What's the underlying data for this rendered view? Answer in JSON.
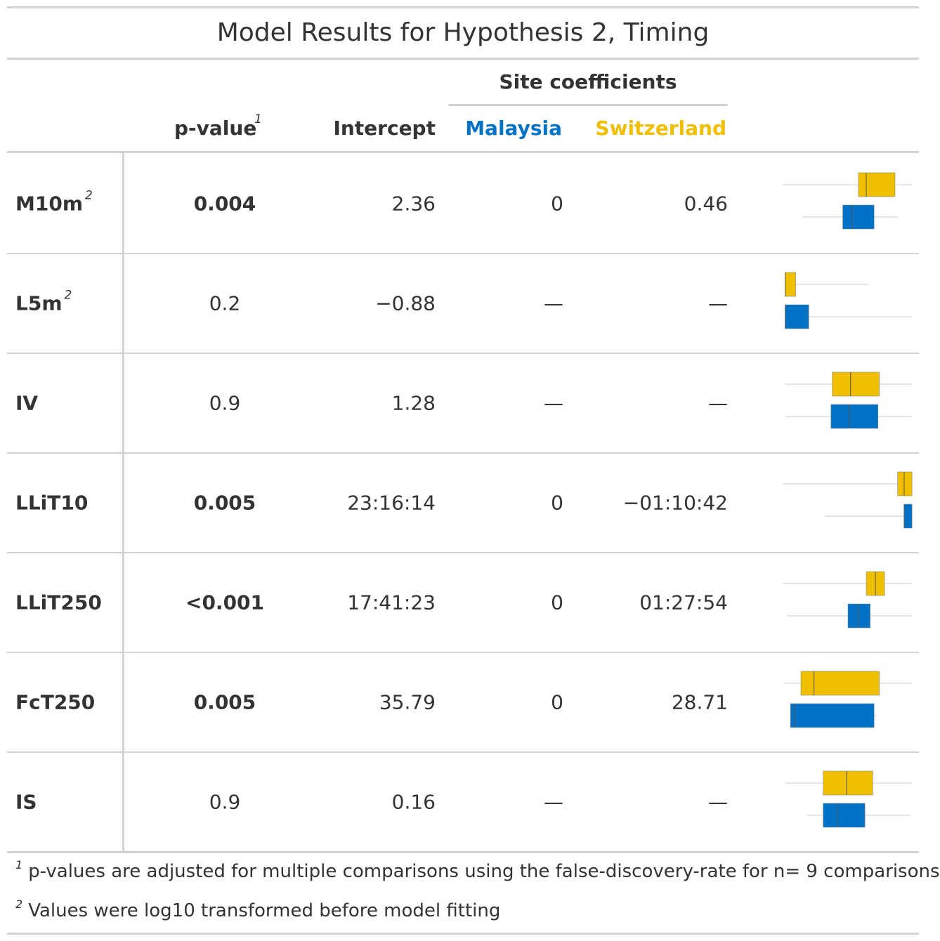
{
  "title": "Model Results for Hypothesis 2, Timing",
  "spanner": "Site coefficients",
  "columns": {
    "pvalue": "p-value",
    "pvalue_sup": "1",
    "intercept": "Intercept",
    "malaysia": "Malaysia",
    "switzerland": "Switzerland"
  },
  "colors": {
    "malaysia": "#0072c6",
    "switzerland": "#f0c000",
    "text": "#333333",
    "rule": "#d3d3d3"
  },
  "rows": [
    {
      "label": "M10m",
      "sup": "2",
      "pvalue": "0.004",
      "bold": true,
      "intercept": "2.36",
      "malaysia": "0",
      "switzerland": "0.46",
      "box": {
        "sw": [
          0.0,
          0.58,
          0.64,
          0.69,
          0.86,
          0.99
        ],
        "my": [
          0.15,
          0.46,
          0.53,
          0.58,
          0.7,
          0.88
        ]
      }
    },
    {
      "label": "L5m",
      "sup": "2",
      "pvalue": "0.2",
      "bold": false,
      "intercept": "−0.88",
      "malaysia": "—",
      "switzerland": "—",
      "box": {
        "sw": [
          0.02,
          0.02,
          0.02,
          0.02,
          0.1,
          0.66
        ],
        "my": [
          0.02,
          0.02,
          0.02,
          0.02,
          0.2,
          0.99
        ]
      }
    },
    {
      "label": "IV",
      "pvalue": "0.9",
      "bold": false,
      "intercept": "1.28",
      "malaysia": "—",
      "switzerland": "—",
      "box": {
        "sw": [
          0.02,
          0.38,
          0.52,
          0.74,
          0.74,
          0.99
        ],
        "my": [
          0.02,
          0.37,
          0.51,
          0.73,
          0.73,
          0.99
        ]
      }
    },
    {
      "label": "LLiT10",
      "pvalue": "0.005",
      "bold": true,
      "intercept": "23:16:14",
      "malaysia": "0",
      "switzerland": "−01:10:42",
      "box": {
        "sw": [
          0.0,
          0.88,
          0.93,
          0.99,
          0.99,
          0.99
        ],
        "my": [
          0.32,
          0.93,
          0.93,
          0.99,
          0.99,
          0.99
        ]
      }
    },
    {
      "label": "LLiT250",
      "pvalue": "<0.001",
      "bold": true,
      "intercept": "17:41:23",
      "malaysia": "0",
      "switzerland": "01:27:54",
      "box": {
        "sw": [
          0.0,
          0.64,
          0.71,
          0.78,
          0.78,
          0.99
        ],
        "my": [
          0.03,
          0.5,
          0.58,
          0.67,
          0.67,
          0.99
        ]
      }
    },
    {
      "label": "FcT250",
      "pvalue": "0.005",
      "bold": true,
      "intercept": "35.79",
      "malaysia": "0",
      "switzerland": "28.71",
      "box": {
        "sw": [
          0.01,
          0.14,
          0.24,
          0.37,
          0.74,
          0.99
        ],
        "my": [
          0.06,
          0.06,
          0.09,
          0.2,
          0.7,
          0.72
        ]
      }
    },
    {
      "label": "IS",
      "pvalue": "0.9",
      "bold": false,
      "intercept": "0.16",
      "malaysia": "—",
      "switzerland": "—",
      "box": {
        "sw": [
          0.02,
          0.31,
          0.49,
          0.69,
          0.69,
          0.99
        ],
        "my": [
          0.18,
          0.31,
          0.42,
          0.63,
          0.63,
          0.98
        ]
      }
    }
  ],
  "footnotes": [
    {
      "mark": "1",
      "text": "p-values are adjusted for multiple comparisons using the false-discovery-rate for n= 9 comparisons"
    },
    {
      "mark": "2",
      "text": "Values were log10 transformed before model fitting"
    }
  ]
}
